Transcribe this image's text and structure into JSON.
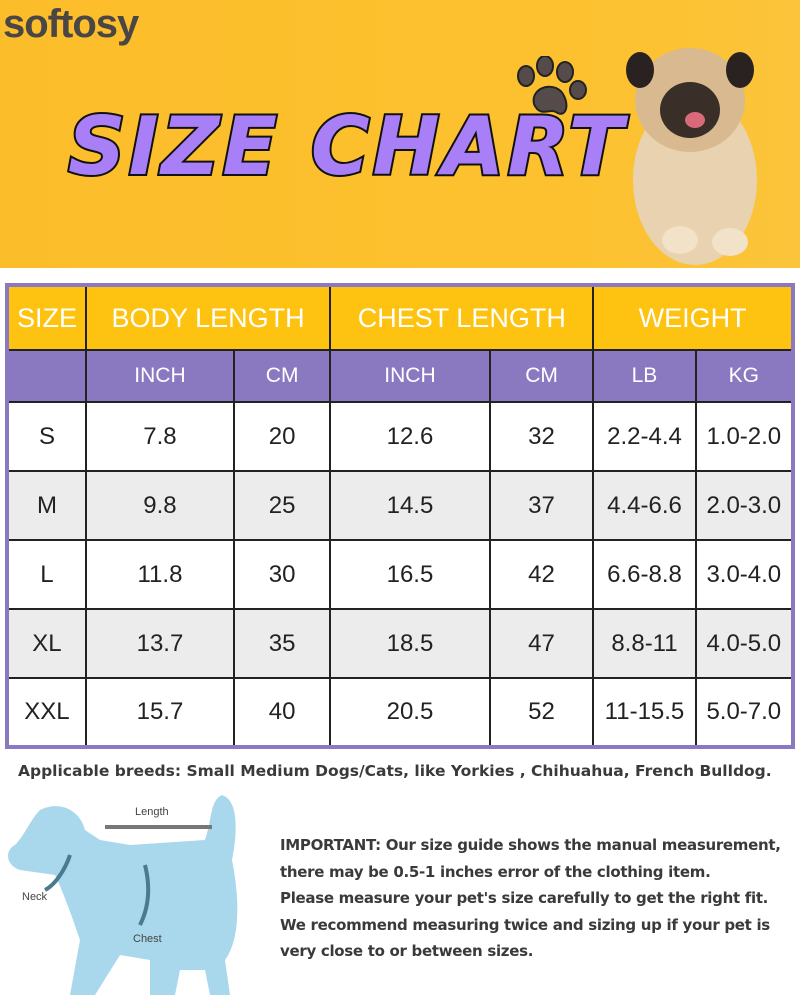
{
  "brand": "softosy",
  "title": "SIZE CHART",
  "table": {
    "group_headers": [
      "SIZE",
      "BODY LENGTH",
      "CHEST LENGTH",
      "WEIGHT"
    ],
    "unit_headers": [
      "INCH",
      "CM",
      "INCH",
      "CM",
      "LB",
      "KG"
    ],
    "rows": [
      [
        "S",
        "7.8",
        "20",
        "12.6",
        "32",
        "2.2-4.4",
        "1.0-2.0"
      ],
      [
        "M",
        "9.8",
        "25",
        "14.5",
        "37",
        "4.4-6.6",
        "2.0-3.0"
      ],
      [
        "L",
        "11.8",
        "30",
        "16.5",
        "42",
        "6.6-8.8",
        "3.0-4.0"
      ],
      [
        "XL",
        "13.7",
        "35",
        "18.5",
        "47",
        "8.8-11",
        "4.0-5.0"
      ],
      [
        "XXL",
        "15.7",
        "40",
        "20.5",
        "52",
        "11-15.5",
        "5.0-7.0"
      ]
    ]
  },
  "breeds": "Applicable breeds: Small Medium Dogs/Cats, like Yorkies , Chihuahua, French Bulldog.",
  "diagram": {
    "length": "Length",
    "neck": "Neck",
    "chest": "Chest"
  },
  "note": [
    "IMPORTANT: Our size guide shows the manual measurement,",
    "there may be 0.5-1 inches error of the clothing item.",
    "Please measure your pet's size carefully to get the right fit.",
    "We recommend measuring twice and sizing up if your pet is",
    "very close to or between sizes."
  ],
  "colors": {
    "banner": "#fdc12f",
    "title": "#a97ff7",
    "header": "#fec311",
    "subheader": "#8a79c0"
  }
}
